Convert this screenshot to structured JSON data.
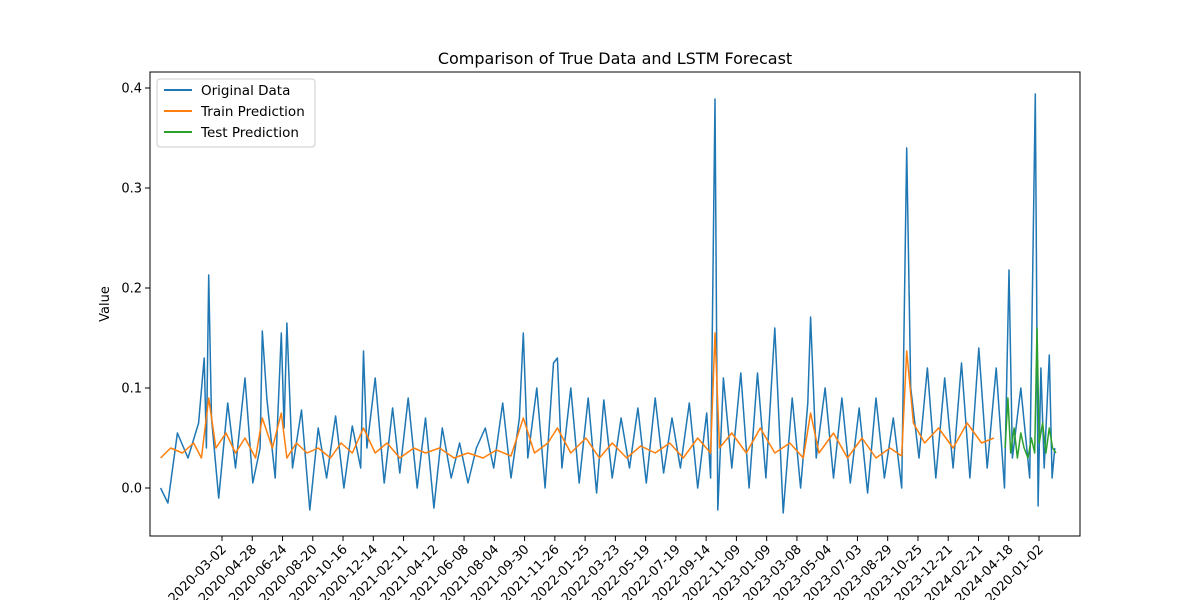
{
  "chart_data": {
    "type": "line",
    "title": "Comparison of True Data and LSTM Forecast",
    "xlabel": "",
    "ylabel": "Value",
    "ylim": [
      -0.048,
      0.416
    ],
    "yticks": [
      0.0,
      0.1,
      0.2,
      0.3,
      0.4
    ],
    "ytick_labels": [
      "0.0",
      "0.1",
      "0.2",
      "0.3",
      "0.4"
    ],
    "xlim": [
      "2019-12-14",
      "2024-07-04"
    ],
    "xticks": [
      "2020-03-02",
      "2020-04-28",
      "2020-06-24",
      "2020-08-20",
      "2020-10-16",
      "2020-12-14",
      "2021-02-11",
      "2021-04-12",
      "2021-06-08",
      "2021-08-04",
      "2021-09-30",
      "2021-11-26",
      "2022-01-25",
      "2022-03-23",
      "2022-05-19",
      "2022-07-19",
      "2022-09-14",
      "2022-11-09",
      "2023-01-09",
      "2023-03-08",
      "2023-05-04",
      "2023-07-03",
      "2023-08-29",
      "2023-10-25",
      "2023-12-21",
      "2024-02-21",
      "2024-04-18",
      "2020-01-02"
    ],
    "grid": false,
    "legend": {
      "position": "top-left",
      "entries": [
        "Original Data",
        "Train Prediction",
        "Test Prediction"
      ]
    },
    "series": [
      {
        "name": "Original Data",
        "color": "#1f77b4",
        "x": [
          "2020-01-02",
          "2020-01-15",
          "2020-02-01",
          "2020-02-20",
          "2020-03-10",
          "2020-03-20",
          "2020-03-24",
          "2020-03-28",
          "2020-04-02",
          "2020-04-15",
          "2020-05-01",
          "2020-05-15",
          "2020-06-01",
          "2020-06-15",
          "2020-06-28",
          "2020-07-02",
          "2020-07-10",
          "2020-07-25",
          "2020-08-05",
          "2020-08-10",
          "2020-08-15",
          "2020-08-25",
          "2020-09-10",
          "2020-09-25",
          "2020-10-10",
          "2020-10-25",
          "2020-11-10",
          "2020-11-25",
          "2020-12-10",
          "2020-12-25",
          "2020-12-30",
          "2021-01-05",
          "2021-01-20",
          "2021-02-05",
          "2021-02-20",
          "2021-03-05",
          "2021-03-20",
          "2021-04-05",
          "2021-04-20",
          "2021-05-05",
          "2021-05-20",
          "2021-06-05",
          "2021-06-20",
          "2021-07-05",
          "2021-07-20",
          "2021-08-05",
          "2021-08-20",
          "2021-09-05",
          "2021-09-20",
          "2021-10-05",
          "2021-10-12",
          "2021-10-20",
          "2021-11-05",
          "2021-11-20",
          "2021-12-05",
          "2021-12-12",
          "2021-12-20",
          "2022-01-05",
          "2022-01-20",
          "2022-02-05",
          "2022-02-20",
          "2022-03-05",
          "2022-03-20",
          "2022-04-05",
          "2022-04-20",
          "2022-05-05",
          "2022-05-20",
          "2022-06-05",
          "2022-06-20",
          "2022-07-05",
          "2022-07-20",
          "2022-08-05",
          "2022-08-20",
          "2022-09-05",
          "2022-09-12",
          "2022-09-20",
          "2022-09-25",
          "2022-10-05",
          "2022-10-20",
          "2022-11-05",
          "2022-11-20",
          "2022-12-05",
          "2022-12-20",
          "2023-01-05",
          "2023-01-20",
          "2023-02-05",
          "2023-02-20",
          "2023-03-05",
          "2023-03-10",
          "2023-03-20",
          "2023-04-05",
          "2023-04-20",
          "2023-05-05",
          "2023-05-20",
          "2023-06-05",
          "2023-06-20",
          "2023-07-05",
          "2023-07-20",
          "2023-08-05",
          "2023-08-20",
          "2023-08-29",
          "2023-09-05",
          "2023-09-20",
          "2023-10-05",
          "2023-10-20",
          "2023-11-05",
          "2023-11-20",
          "2023-12-05",
          "2023-12-20",
          "2024-01-05",
          "2024-01-20",
          "2024-02-05",
          "2024-02-20",
          "2024-02-28",
          "2024-03-05",
          "2024-03-20",
          "2024-04-05",
          "2024-04-15",
          "2024-04-20",
          "2024-04-25",
          "2024-05-01",
          "2024-05-10",
          "2024-05-15",
          "2024-05-20"
        ],
        "values": [
          0.0,
          -0.015,
          0.055,
          0.03,
          0.065,
          0.13,
          0.04,
          0.213,
          0.07,
          -0.01,
          0.085,
          0.02,
          0.11,
          0.005,
          0.04,
          0.157,
          0.09,
          0.01,
          0.155,
          0.06,
          0.165,
          0.02,
          0.078,
          -0.022,
          0.06,
          0.01,
          0.072,
          0.0,
          0.062,
          0.02,
          0.137,
          0.04,
          0.11,
          0.005,
          0.08,
          0.015,
          0.09,
          0.0,
          0.07,
          -0.02,
          0.06,
          0.01,
          0.045,
          0.005,
          0.04,
          0.06,
          0.02,
          0.085,
          0.01,
          0.07,
          0.155,
          0.03,
          0.1,
          0.0,
          0.125,
          0.13,
          0.02,
          0.1,
          0.005,
          0.09,
          -0.005,
          0.088,
          0.01,
          0.07,
          0.02,
          0.08,
          0.005,
          0.09,
          0.015,
          0.07,
          0.02,
          0.085,
          0.0,
          0.075,
          0.01,
          0.389,
          -0.022,
          0.11,
          0.02,
          0.115,
          0.0,
          0.115,
          0.01,
          0.16,
          -0.025,
          0.09,
          0.0,
          0.085,
          0.171,
          0.03,
          0.1,
          0.01,
          0.09,
          0.005,
          0.08,
          -0.005,
          0.09,
          0.01,
          0.07,
          0.0,
          0.34,
          0.1,
          0.03,
          0.12,
          0.01,
          0.11,
          0.02,
          0.125,
          0.01,
          0.14,
          0.02,
          0.12,
          0.0,
          0.218,
          0.03,
          0.1,
          0.01,
          0.394,
          -0.018,
          0.12,
          0.02,
          0.133,
          0.01,
          0.04
        ]
      },
      {
        "name": "Train Prediction",
        "color": "#ff7f0e",
        "x": [
          "2020-01-02",
          "2020-01-20",
          "2020-02-10",
          "2020-03-01",
          "2020-03-15",
          "2020-03-28",
          "2020-04-10",
          "2020-04-28",
          "2020-05-15",
          "2020-06-01",
          "2020-06-20",
          "2020-07-02",
          "2020-07-20",
          "2020-08-05",
          "2020-08-15",
          "2020-09-01",
          "2020-09-20",
          "2020-10-10",
          "2020-11-01",
          "2020-11-20",
          "2020-12-10",
          "2020-12-30",
          "2021-01-20",
          "2021-02-10",
          "2021-03-05",
          "2021-03-30",
          "2021-04-20",
          "2021-05-15",
          "2021-06-10",
          "2021-07-05",
          "2021-08-01",
          "2021-08-25",
          "2021-09-20",
          "2021-10-12",
          "2021-11-01",
          "2021-11-25",
          "2021-12-12",
          "2022-01-05",
          "2022-02-01",
          "2022-02-25",
          "2022-03-20",
          "2022-04-15",
          "2022-05-10",
          "2022-06-05",
          "2022-07-01",
          "2022-07-25",
          "2022-08-20",
          "2022-09-12",
          "2022-09-20",
          "2022-09-28",
          "2022-10-20",
          "2022-11-15",
          "2022-12-10",
          "2023-01-05",
          "2023-02-01",
          "2023-02-25",
          "2023-03-10",
          "2023-03-25",
          "2023-04-20",
          "2023-05-15",
          "2023-06-10",
          "2023-07-05",
          "2023-07-30",
          "2023-08-20",
          "2023-08-29",
          "2023-09-10",
          "2023-09-30",
          "2023-10-25",
          "2023-11-20",
          "2023-12-15",
          "2024-01-10",
          "2024-02-01"
        ],
        "values": [
          0.03,
          0.04,
          0.035,
          0.045,
          0.03,
          0.09,
          0.04,
          0.055,
          0.035,
          0.05,
          0.03,
          0.07,
          0.04,
          0.075,
          0.03,
          0.045,
          0.035,
          0.04,
          0.03,
          0.045,
          0.035,
          0.06,
          0.035,
          0.045,
          0.03,
          0.04,
          0.035,
          0.04,
          0.03,
          0.035,
          0.03,
          0.038,
          0.032,
          0.07,
          0.035,
          0.045,
          0.06,
          0.035,
          0.05,
          0.03,
          0.045,
          0.03,
          0.042,
          0.035,
          0.045,
          0.03,
          0.05,
          0.035,
          0.155,
          0.04,
          0.055,
          0.035,
          0.06,
          0.035,
          0.045,
          0.03,
          0.075,
          0.035,
          0.055,
          0.03,
          0.05,
          0.03,
          0.04,
          0.032,
          0.137,
          0.065,
          0.045,
          0.06,
          0.04,
          0.065,
          0.045,
          0.05
        ]
      },
      {
        "name": "Test Prediction",
        "color": "#2ca02c",
        "x": [
          "2024-02-21",
          "2024-02-26",
          "2024-03-02",
          "2024-03-08",
          "2024-03-14",
          "2024-03-20",
          "2024-03-26",
          "2024-04-02",
          "2024-04-08",
          "2024-04-14",
          "2024-04-18",
          "2024-04-22",
          "2024-04-28",
          "2024-05-04",
          "2024-05-10",
          "2024-05-16",
          "2024-05-22"
        ],
        "values": [
          0.04,
          0.09,
          0.035,
          0.06,
          0.03,
          0.055,
          0.04,
          0.03,
          0.05,
          0.035,
          0.16,
          0.045,
          0.065,
          0.035,
          0.06,
          0.04,
          0.035
        ]
      }
    ]
  }
}
